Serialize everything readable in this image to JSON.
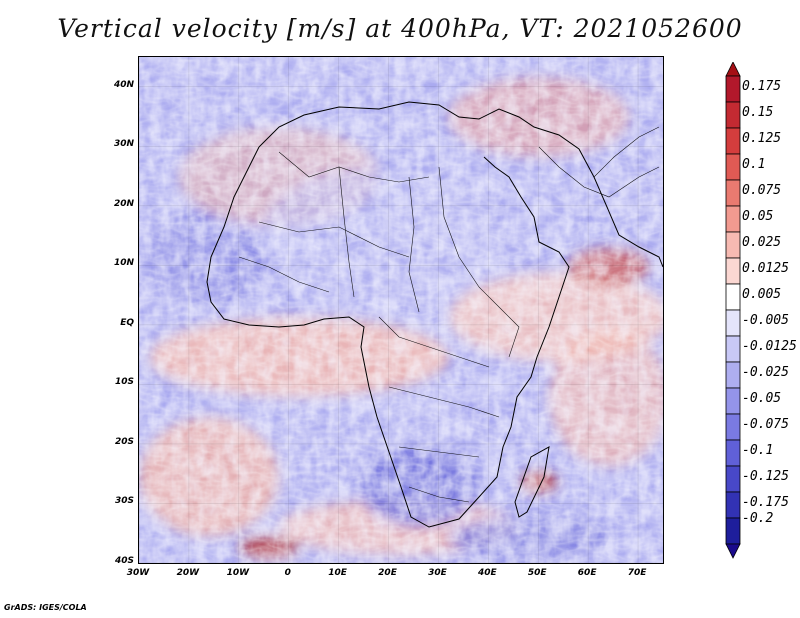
{
  "title": "Vertical velocity [m/s] at 400hPa, VT: 2021052600",
  "footer": "GrADS: IGES/COLA",
  "map": {
    "lon_range": [
      -30,
      75
    ],
    "lat_range": [
      -40,
      45
    ],
    "lat_ticks": [
      {
        "value": 40,
        "label": "40N"
      },
      {
        "value": 30,
        "label": "30N"
      },
      {
        "value": 20,
        "label": "20N"
      },
      {
        "value": 10,
        "label": "10N"
      },
      {
        "value": 0,
        "label": "EQ"
      },
      {
        "value": -10,
        "label": "10S"
      },
      {
        "value": -20,
        "label": "20S"
      },
      {
        "value": -30,
        "label": "30S"
      },
      {
        "value": -40,
        "label": "40S"
      }
    ],
    "lon_ticks": [
      {
        "value": -30,
        "label": "30W"
      },
      {
        "value": -20,
        "label": "20W"
      },
      {
        "value": -10,
        "label": "10W"
      },
      {
        "value": 0,
        "label": "0"
      },
      {
        "value": 10,
        "label": "10E"
      },
      {
        "value": 20,
        "label": "20E"
      },
      {
        "value": 30,
        "label": "30E"
      },
      {
        "value": 40,
        "label": "40E"
      },
      {
        "value": 50,
        "label": "50E"
      },
      {
        "value": 60,
        "label": "60E"
      },
      {
        "value": 70,
        "label": "70E"
      }
    ]
  },
  "colorbar": {
    "levels": [
      {
        "label": "0.175",
        "color": "#b2182b"
      },
      {
        "label": "0.15",
        "color": "#c32a32"
      },
      {
        "label": "0.125",
        "color": "#d43d3d"
      },
      {
        "label": "0.1",
        "color": "#e05a54"
      },
      {
        "label": "0.075",
        "color": "#ea7a70"
      },
      {
        "label": "0.05",
        "color": "#f29a90"
      },
      {
        "label": "0.025",
        "color": "#f7bab2"
      },
      {
        "label": "0.0125",
        "color": "#fbd7d2"
      },
      {
        "label": "0.005",
        "color": "#ffffff"
      },
      {
        "label": "-0.005",
        "color": "#e4e4fb"
      },
      {
        "label": "-0.0125",
        "color": "#c8c8f6"
      },
      {
        "label": "-0.025",
        "color": "#aeaef0"
      },
      {
        "label": "-0.05",
        "color": "#9494ea"
      },
      {
        "label": "-0.075",
        "color": "#7a7ae2"
      },
      {
        "label": "-0.1",
        "color": "#6060d8"
      },
      {
        "label": "-0.125",
        "color": "#4848c8"
      },
      {
        "label": "-0.175",
        "color": "#3232b4"
      },
      {
        "label": "-0.2",
        "color": "#1e1e9c"
      }
    ],
    "top_arrow_color": "#a50f15",
    "bottom_arrow_color": "#1a0a8c"
  }
}
